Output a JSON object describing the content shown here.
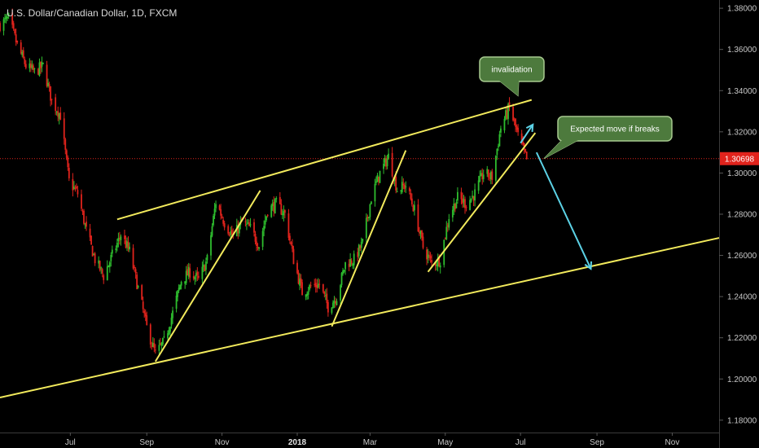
{
  "chart_data": {
    "type": "candlestick",
    "title": "U.S. Dollar/Canadian Dollar, 1D, FXCM",
    "current_price": "1.30698",
    "current_price_value": 1.30698,
    "y_ticks": [
      "1.38000",
      "1.36000",
      "1.34000",
      "1.32000",
      "1.30000",
      "1.28000",
      "1.26000",
      "1.24000",
      "1.22000",
      "1.20000",
      "1.18000"
    ],
    "y_tick_values": [
      1.38,
      1.36,
      1.34,
      1.32,
      1.3,
      1.28,
      1.26,
      1.24,
      1.22,
      1.2,
      1.18
    ],
    "ylim": [
      1.174,
      1.384
    ],
    "x_ticks": [
      {
        "label": "Jul",
        "date": "2017-07-01",
        "bold": false
      },
      {
        "label": "Sep",
        "date": "2017-09-01",
        "bold": false
      },
      {
        "label": "Nov",
        "date": "2017-11-01",
        "bold": false
      },
      {
        "label": "2018",
        "date": "2018-01-01",
        "bold": true
      },
      {
        "label": "Mar",
        "date": "2018-03-01",
        "bold": false
      },
      {
        "label": "May",
        "date": "2018-05-01",
        "bold": false
      },
      {
        "label": "Jul",
        "date": "2018-07-01",
        "bold": false
      },
      {
        "label": "Sep",
        "date": "2018-09-01",
        "bold": false
      },
      {
        "label": "Nov",
        "date": "2018-11-01",
        "bold": false
      }
    ],
    "xlim": [
      "2017-05-05",
      "2018-12-09"
    ],
    "price_path": [
      [
        "2017-05-05",
        1.372
      ],
      [
        "2017-05-12",
        1.375
      ],
      [
        "2017-05-19",
        1.362
      ],
      [
        "2017-05-26",
        1.352
      ],
      [
        "2017-06-02",
        1.349
      ],
      [
        "2017-06-09",
        1.352
      ],
      [
        "2017-06-16",
        1.335
      ],
      [
        "2017-06-23",
        1.328
      ],
      [
        "2017-06-30",
        1.296
      ],
      [
        "2017-07-07",
        1.29
      ],
      [
        "2017-07-14",
        1.272
      ],
      [
        "2017-07-21",
        1.258
      ],
      [
        "2017-07-28",
        1.25
      ],
      [
        "2017-08-04",
        1.26
      ],
      [
        "2017-08-11",
        1.27
      ],
      [
        "2017-08-18",
        1.262
      ],
      [
        "2017-08-25",
        1.244
      ],
      [
        "2017-09-01",
        1.225
      ],
      [
        "2017-09-08",
        1.212
      ],
      [
        "2017-09-15",
        1.218
      ],
      [
        "2017-09-22",
        1.232
      ],
      [
        "2017-09-29",
        1.248
      ],
      [
        "2017-10-06",
        1.252
      ],
      [
        "2017-10-13",
        1.248
      ],
      [
        "2017-10-20",
        1.258
      ],
      [
        "2017-10-27",
        1.286
      ],
      [
        "2017-11-03",
        1.276
      ],
      [
        "2017-11-10",
        1.269
      ],
      [
        "2017-11-17",
        1.276
      ],
      [
        "2017-11-24",
        1.273
      ],
      [
        "2017-12-01",
        1.265
      ],
      [
        "2017-12-08",
        1.282
      ],
      [
        "2017-12-15",
        1.285
      ],
      [
        "2017-12-22",
        1.28
      ],
      [
        "2017-12-29",
        1.258
      ],
      [
        "2018-01-05",
        1.242
      ],
      [
        "2018-01-12",
        1.245
      ],
      [
        "2018-01-19",
        1.246
      ],
      [
        "2018-01-26",
        1.235
      ],
      [
        "2018-02-02",
        1.24
      ],
      [
        "2018-02-09",
        1.256
      ],
      [
        "2018-02-16",
        1.258
      ],
      [
        "2018-02-23",
        1.266
      ],
      [
        "2018-03-02",
        1.288
      ],
      [
        "2018-03-09",
        1.3
      ],
      [
        "2018-03-16",
        1.308
      ],
      [
        "2018-03-23",
        1.292
      ],
      [
        "2018-03-30",
        1.294
      ],
      [
        "2018-04-06",
        1.282
      ],
      [
        "2018-04-13",
        1.264
      ],
      [
        "2018-04-20",
        1.256
      ],
      [
        "2018-04-27",
        1.258
      ],
      [
        "2018-05-04",
        1.279
      ],
      [
        "2018-05-11",
        1.288
      ],
      [
        "2018-05-18",
        1.285
      ],
      [
        "2018-05-25",
        1.29
      ],
      [
        "2018-06-01",
        1.3
      ],
      [
        "2018-06-08",
        1.298
      ],
      [
        "2018-06-15",
        1.322
      ],
      [
        "2018-06-22",
        1.332
      ],
      [
        "2018-06-29",
        1.318
      ],
      [
        "2018-07-06",
        1.3065
      ]
    ],
    "annotations": {
      "trendlines": [
        {
          "kind": "channel-top",
          "from": [
            "2017-08-08",
            1.2775
          ],
          "to": [
            "2018-07-10",
            1.3355
          ]
        },
        {
          "kind": "channel-bottom",
          "from": [
            "2017-05-05",
            1.191
          ],
          "to": [
            "2018-12-09",
            1.2685
          ]
        },
        {
          "kind": "leg-1",
          "from": [
            "2017-09-08",
            1.2085
          ],
          "to": [
            "2017-12-02",
            1.2915
          ]
        },
        {
          "kind": "leg-2",
          "from": [
            "2018-01-29",
            1.2255
          ],
          "to": [
            "2018-03-30",
            1.311
          ]
        },
        {
          "kind": "leg-3",
          "from": [
            "2018-04-17",
            1.252
          ],
          "to": [
            "2018-07-13",
            1.3195
          ]
        }
      ],
      "arrows": [
        {
          "kind": "up",
          "from": [
            "2018-07-01",
            1.3145
          ],
          "to": [
            "2018-07-11",
            1.3235
          ]
        },
        {
          "kind": "down",
          "from": [
            "2018-07-14",
            1.31
          ],
          "to": [
            "2018-08-27",
            1.2535
          ]
        }
      ],
      "callouts": [
        {
          "text": "invalidation",
          "anchor": [
            "2018-06-29",
            1.3375
          ]
        },
        {
          "text": "Expected move if breaks",
          "anchor": [
            "2018-07-20",
            1.307
          ]
        }
      ]
    },
    "colors": {
      "up": "#2ebd2e",
      "down": "#e0231c",
      "trendline": "#f2ea5c",
      "arrow": "#5cd2e6",
      "callout_fill": "#4d7a3d",
      "callout_stroke": "#a7c98f",
      "price_line": "#e0231c",
      "price_tag": "#e0231c"
    }
  }
}
